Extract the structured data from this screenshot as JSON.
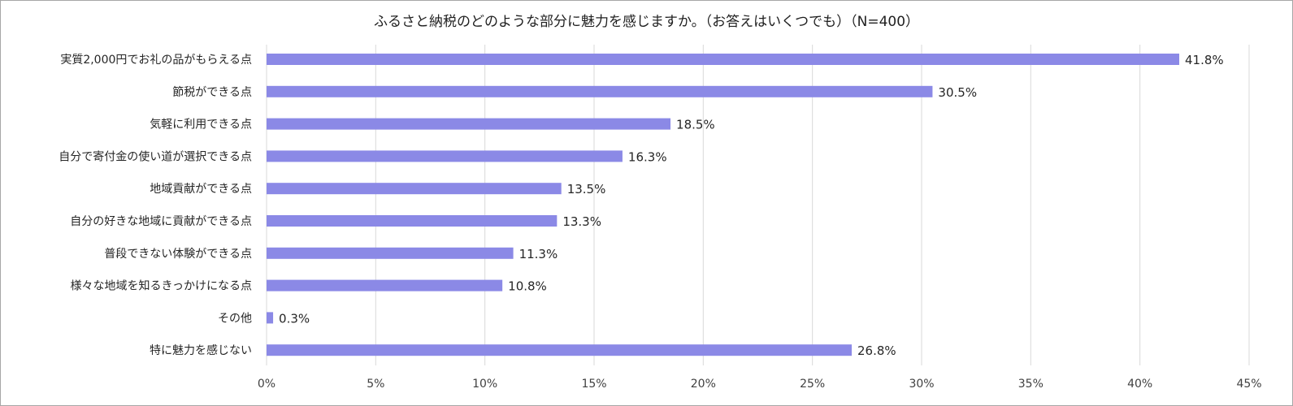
{
  "chart_data": {
    "type": "bar",
    "orientation": "horizontal",
    "title": "ふるさと納税のどのような部分に魅力を感じますか。（お答えはいくつでも）（N=400）",
    "categories": [
      "実質2,000円でお礼の品がもらえる点",
      "節税ができる点",
      "気軽に利用できる点",
      "自分で寄付金の使い道が選択できる点",
      "地域貢献ができる点",
      "自分の好きな地域に貢献ができる点",
      "普段できない体験ができる点",
      "様々な地域を知るきっかけになる点",
      "その他",
      "特に魅力を感じない"
    ],
    "values": [
      41.8,
      30.5,
      18.5,
      16.3,
      13.5,
      13.3,
      11.3,
      10.8,
      0.3,
      26.8
    ],
    "value_labels": [
      "41.8%",
      "30.5%",
      "18.5%",
      "16.3%",
      "13.5%",
      "13.3%",
      "11.3%",
      "10.8%",
      "0.3%",
      "26.8%"
    ],
    "xlim": [
      0,
      45
    ],
    "xticks": [
      0,
      5,
      10,
      15,
      20,
      25,
      30,
      35,
      40,
      45
    ],
    "xtick_labels": [
      "0%",
      "5%",
      "10%",
      "15%",
      "20%",
      "25%",
      "30%",
      "35%",
      "40%",
      "45%"
    ],
    "grid": true,
    "legend": "none",
    "bar_color": "#8b89e6",
    "grid_color": "#d9d9d9"
  }
}
